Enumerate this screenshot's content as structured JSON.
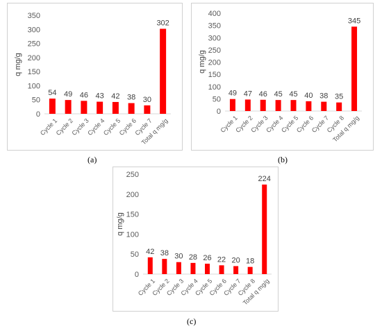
{
  "accent_color": "#ff0000",
  "chart_data": [
    {
      "type": "bar",
      "panel_label": "(a)",
      "ylabel": "q mg/g",
      "ylim": [
        0,
        350
      ],
      "yticks": [
        0,
        50,
        100,
        150,
        200,
        250,
        300,
        350
      ],
      "categories": [
        "Cycle 1",
        "Cycle 2",
        "Cycle 3",
        "Cycle 4",
        "Cycle 5",
        "Cycle 6",
        "Cycle 7",
        "Total q mg/g"
      ],
      "values": [
        54,
        49,
        46,
        43,
        42,
        38,
        30,
        302
      ],
      "grid": false
    },
    {
      "type": "bar",
      "panel_label": "(b)",
      "ylabel": "q mg/g",
      "ylim": [
        0,
        400
      ],
      "yticks": [
        0,
        50,
        100,
        150,
        200,
        250,
        300,
        350,
        400
      ],
      "categories": [
        "Cycle 1",
        "Cycle 2",
        "Cycle 3",
        "Cycle 4",
        "Cycle 5",
        "Cycle 6",
        "Cycle 7",
        "Cycle 8",
        "Total q mg/g"
      ],
      "values": [
        49,
        47,
        46,
        45,
        45,
        40,
        38,
        35,
        345
      ],
      "grid": false
    },
    {
      "type": "bar",
      "panel_label": "(c)",
      "ylabel": "q mg/g",
      "ylim": [
        0,
        250
      ],
      "yticks": [
        0,
        50,
        100,
        150,
        200,
        250
      ],
      "categories": [
        "Cycle 1",
        "Cycle 2",
        "Cycle 3",
        "Cycle 4",
        "Cycle 5",
        "Cycle 6",
        "Cycle 7",
        "Cycle 8",
        "Total q mg/g"
      ],
      "values": [
        42,
        38,
        30,
        28,
        26,
        22,
        20,
        18,
        224
      ],
      "grid": false
    }
  ]
}
